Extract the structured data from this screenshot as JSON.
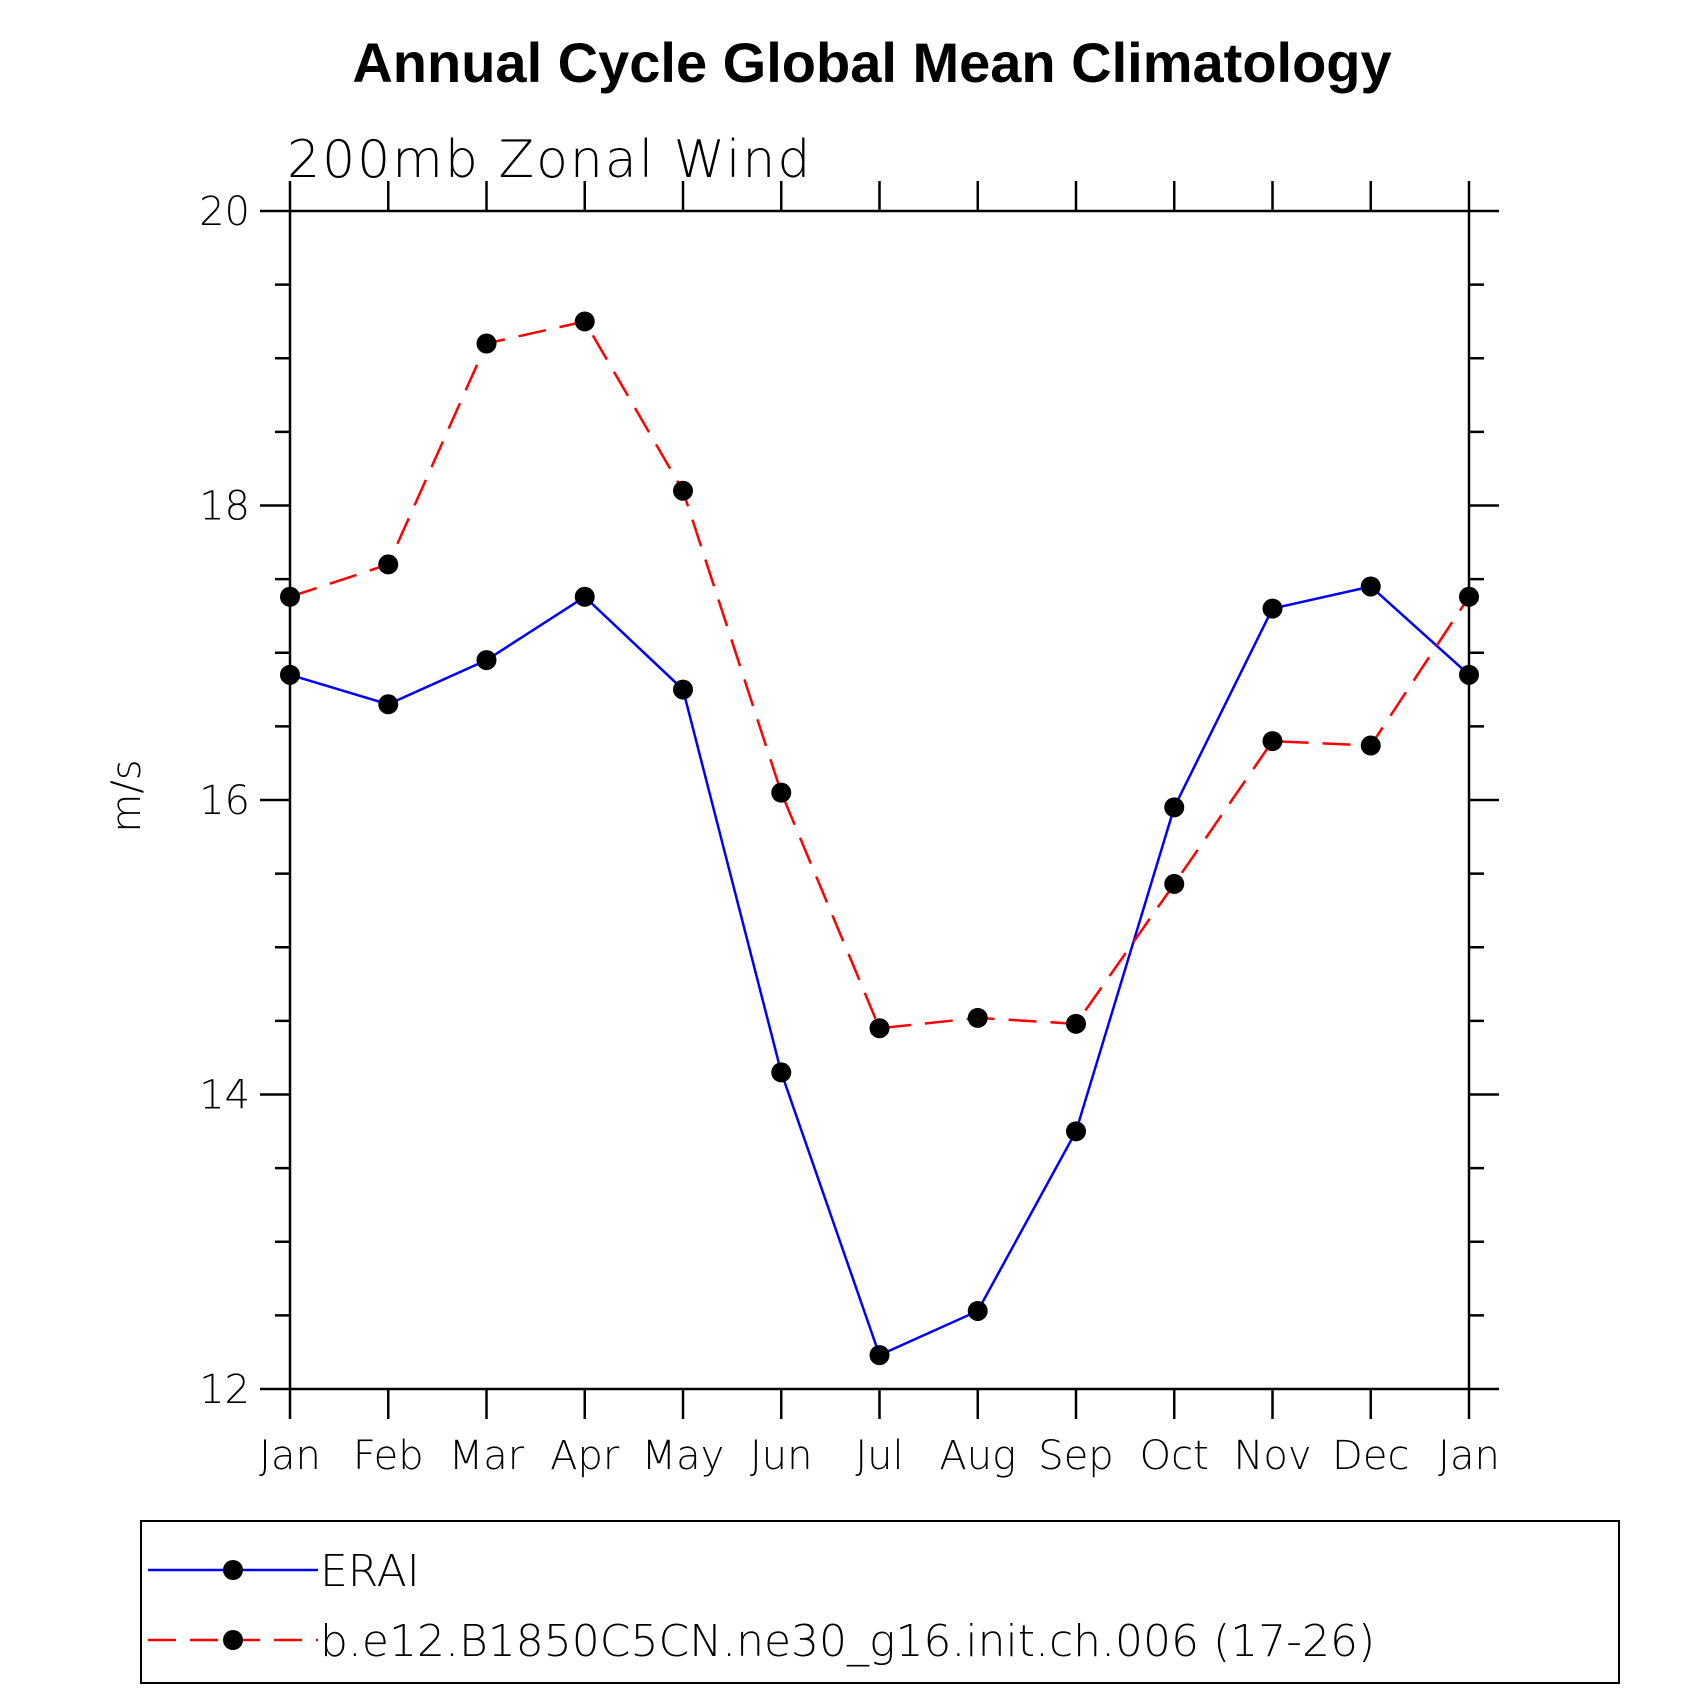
{
  "chart_data": {
    "type": "line",
    "title": "Annual Cycle Global Mean Climatology",
    "subtitle": "200mb Zonal Wind",
    "xlabel": "",
    "ylabel": "m/s",
    "categories": [
      "Jan",
      "Feb",
      "Mar",
      "Apr",
      "May",
      "Jun",
      "Jul",
      "Aug",
      "Sep",
      "Oct",
      "Nov",
      "Dec",
      "Jan"
    ],
    "ylim": [
      12,
      20
    ],
    "yticks": [
      12,
      14,
      16,
      18,
      20
    ],
    "ytick_labels": [
      "12",
      "14",
      "16",
      "18",
      "20"
    ],
    "grid": false,
    "legend_position": "bottom",
    "series": [
      {
        "name": "ERAI",
        "color": "#0000ff",
        "line_style": "solid",
        "marker": "filled-circle",
        "values": [
          16.85,
          16.65,
          16.95,
          17.38,
          16.75,
          14.15,
          12.23,
          12.53,
          13.75,
          15.95,
          17.3,
          17.45,
          16.85
        ]
      },
      {
        "name": "b.e12.B1850C5CN.ne30_g16.init.ch.006 (17-26)",
        "color": "#ff0000",
        "line_style": "dashed",
        "marker": "filled-circle",
        "values": [
          17.38,
          17.6,
          19.1,
          19.25,
          18.1,
          16.05,
          14.45,
          14.52,
          14.48,
          15.43,
          16.4,
          16.37,
          17.38
        ]
      }
    ]
  }
}
